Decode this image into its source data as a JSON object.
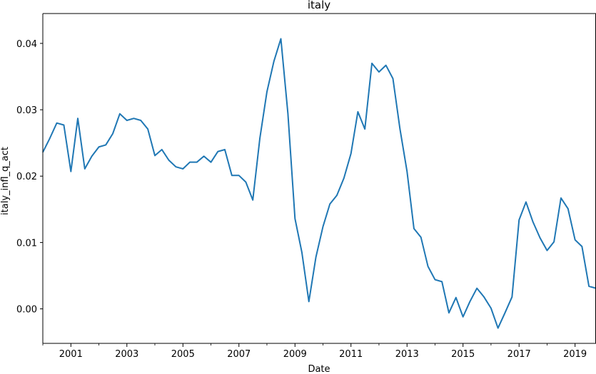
{
  "chart_data": {
    "type": "line",
    "title": "italy",
    "xlabel": "Date",
    "ylabel": "italy_infl_q_act",
    "xlim": [
      "2000-01-01",
      "2019-10-01"
    ],
    "ylim": [
      -0.0052,
      0.0445
    ],
    "x_ticks": [
      "2001",
      "2003",
      "2005",
      "2007",
      "2009",
      "2011",
      "2013",
      "2015",
      "2017",
      "2019"
    ],
    "y_ticks": [
      "0.00",
      "0.01",
      "0.02",
      "0.03",
      "0.04"
    ],
    "grid": false,
    "line_color": "#1f77b4",
    "series": [
      {
        "x": [
          "2000-01-01",
          "2000-04-01",
          "2000-07-01",
          "2000-10-01",
          "2001-01-01",
          "2001-04-01",
          "2001-07-01",
          "2001-10-01",
          "2002-01-01",
          "2002-04-01",
          "2002-07-01",
          "2002-10-01",
          "2003-01-01",
          "2003-04-01",
          "2003-07-01",
          "2003-10-01",
          "2004-01-01",
          "2004-04-01",
          "2004-07-01",
          "2004-10-01",
          "2005-01-01",
          "2005-04-01",
          "2005-07-01",
          "2005-10-01",
          "2006-01-01",
          "2006-04-01",
          "2006-07-01",
          "2006-10-01",
          "2007-01-01",
          "2007-04-01",
          "2007-07-01",
          "2007-10-01",
          "2008-01-01",
          "2008-04-01",
          "2008-07-01",
          "2008-10-01",
          "2009-01-01",
          "2009-04-01",
          "2009-07-01",
          "2009-10-01",
          "2010-01-01",
          "2010-04-01",
          "2010-07-01",
          "2010-10-01",
          "2011-01-01",
          "2011-04-01",
          "2011-07-01",
          "2011-10-01",
          "2012-01-01",
          "2012-04-01",
          "2012-07-01",
          "2012-10-01",
          "2013-01-01",
          "2013-04-01",
          "2013-07-01",
          "2013-10-01",
          "2014-01-01",
          "2014-04-01",
          "2014-07-01",
          "2014-10-01",
          "2015-01-01",
          "2015-04-01",
          "2015-07-01",
          "2015-10-01",
          "2016-01-01",
          "2016-04-01",
          "2016-07-01",
          "2016-10-01",
          "2017-01-01",
          "2017-04-01",
          "2017-07-01",
          "2017-10-01",
          "2018-01-01",
          "2018-04-01",
          "2018-07-01",
          "2018-10-01",
          "2019-01-01",
          "2019-04-01",
          "2019-07-01",
          "2019-10-01"
        ],
        "values": [
          0.0236,
          0.0257,
          0.028,
          0.0277,
          0.0207,
          0.0287,
          0.0211,
          0.023,
          0.0244,
          0.0247,
          0.0264,
          0.0294,
          0.0284,
          0.0287,
          0.0284,
          0.0271,
          0.0231,
          0.024,
          0.0224,
          0.0214,
          0.0211,
          0.0221,
          0.0221,
          0.023,
          0.0221,
          0.0237,
          0.024,
          0.0201,
          0.0201,
          0.0191,
          0.0164,
          0.0257,
          0.0327,
          0.0373,
          0.0407,
          0.0294,
          0.0136,
          0.0085,
          0.0011,
          0.0078,
          0.0124,
          0.0158,
          0.0171,
          0.0197,
          0.0234,
          0.0297,
          0.0271,
          0.037,
          0.0357,
          0.0367,
          0.0347,
          0.0271,
          0.0207,
          0.0121,
          0.0108,
          0.0064,
          0.0044,
          0.0041,
          -0.0006,
          0.0017,
          -0.0012,
          0.0011,
          0.0031,
          0.0018,
          0.0001,
          -0.0029,
          -0.0006,
          0.0018,
          0.0134,
          0.0161,
          0.0131,
          0.0107,
          0.0088,
          0.0101,
          0.0167,
          0.0151,
          0.0104,
          0.0094,
          0.0034,
          0.0031
        ]
      }
    ]
  }
}
